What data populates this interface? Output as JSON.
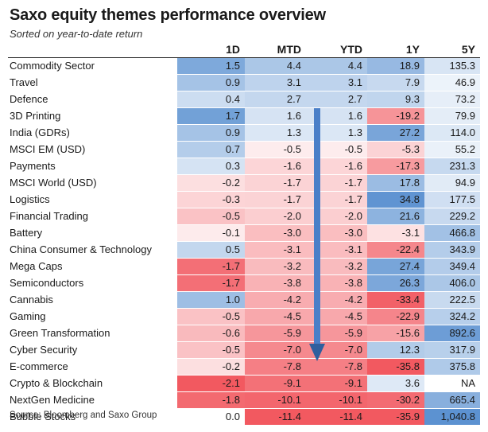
{
  "title": "Saxo equity themes performance overview",
  "subtitle": "Sorted on year-to-date return",
  "source": "Source: Bloomberg and Saxo Group",
  "chart_data": {
    "type": "table",
    "columns": [
      "",
      "1D",
      "MTD",
      "YTD",
      "1Y",
      "5Y"
    ],
    "rows": [
      {
        "name": "Commodity Sector",
        "values": [
          "1.5",
          "4.4",
          "4.4",
          "18.9",
          "135.3"
        ]
      },
      {
        "name": "Travel",
        "values": [
          "0.9",
          "3.1",
          "3.1",
          "7.9",
          "46.9"
        ]
      },
      {
        "name": "Defence",
        "values": [
          "0.4",
          "2.7",
          "2.7",
          "9.3",
          "73.2"
        ]
      },
      {
        "name": "3D Printing",
        "values": [
          "1.7",
          "1.6",
          "1.6",
          "-19.2",
          "79.9"
        ]
      },
      {
        "name": "India (GDRs)",
        "values": [
          "0.9",
          "1.3",
          "1.3",
          "27.2",
          "114.0"
        ]
      },
      {
        "name": "MSCI EM (USD)",
        "values": [
          "0.7",
          "-0.5",
          "-0.5",
          "-5.3",
          "55.2"
        ]
      },
      {
        "name": "Payments",
        "values": [
          "0.3",
          "-1.6",
          "-1.6",
          "-17.3",
          "231.3"
        ]
      },
      {
        "name": "MSCI World (USD)",
        "values": [
          "-0.2",
          "-1.7",
          "-1.7",
          "17.8",
          "94.9"
        ]
      },
      {
        "name": "Logistics",
        "values": [
          "-0.3",
          "-1.7",
          "-1.7",
          "34.8",
          "177.5"
        ]
      },
      {
        "name": "Financial Trading",
        "values": [
          "-0.5",
          "-2.0",
          "-2.0",
          "21.6",
          "229.2"
        ]
      },
      {
        "name": "Battery",
        "values": [
          "-0.1",
          "-3.0",
          "-3.0",
          "-3.1",
          "466.8"
        ]
      },
      {
        "name": "China Consumer & Technology",
        "values": [
          "0.5",
          "-3.1",
          "-3.1",
          "-22.4",
          "343.9"
        ]
      },
      {
        "name": "Mega Caps",
        "values": [
          "-1.7",
          "-3.2",
          "-3.2",
          "27.4",
          "349.4"
        ]
      },
      {
        "name": "Semiconductors",
        "values": [
          "-1.7",
          "-3.8",
          "-3.8",
          "26.3",
          "406.0"
        ]
      },
      {
        "name": "Cannabis",
        "values": [
          "1.0",
          "-4.2",
          "-4.2",
          "-33.4",
          "222.5"
        ]
      },
      {
        "name": "Gaming",
        "values": [
          "-0.5",
          "-4.5",
          "-4.5",
          "-22.9",
          "324.2"
        ]
      },
      {
        "name": "Green Transformation",
        "values": [
          "-0.6",
          "-5.9",
          "-5.9",
          "-15.6",
          "892.6"
        ]
      },
      {
        "name": "Cyber Security",
        "values": [
          "-0.5",
          "-7.0",
          "-7.0",
          "12.3",
          "317.9"
        ]
      },
      {
        "name": "E-commerce",
        "values": [
          "-0.2",
          "-7.8",
          "-7.8",
          "-35.8",
          "375.8"
        ]
      },
      {
        "name": "Crypto & Blockchain",
        "values": [
          "-2.1",
          "-9.1",
          "-9.1",
          "3.6",
          "NA"
        ]
      },
      {
        "name": "NextGen Medicine",
        "values": [
          "-1.8",
          "-10.1",
          "-10.1",
          "-30.2",
          "665.4"
        ]
      },
      {
        "name": "Bubble Stocks",
        "values": [
          "0.0",
          "-11.4",
          "-11.4",
          "-35.9",
          "1,040.8"
        ]
      }
    ],
    "colors": {
      "positive": "#4a86cc",
      "negative": "#f0464e",
      "neutral": "#ffffff",
      "arrow": "#4a7fc8",
      "arrow_edge": "#2f5f9e"
    }
  }
}
